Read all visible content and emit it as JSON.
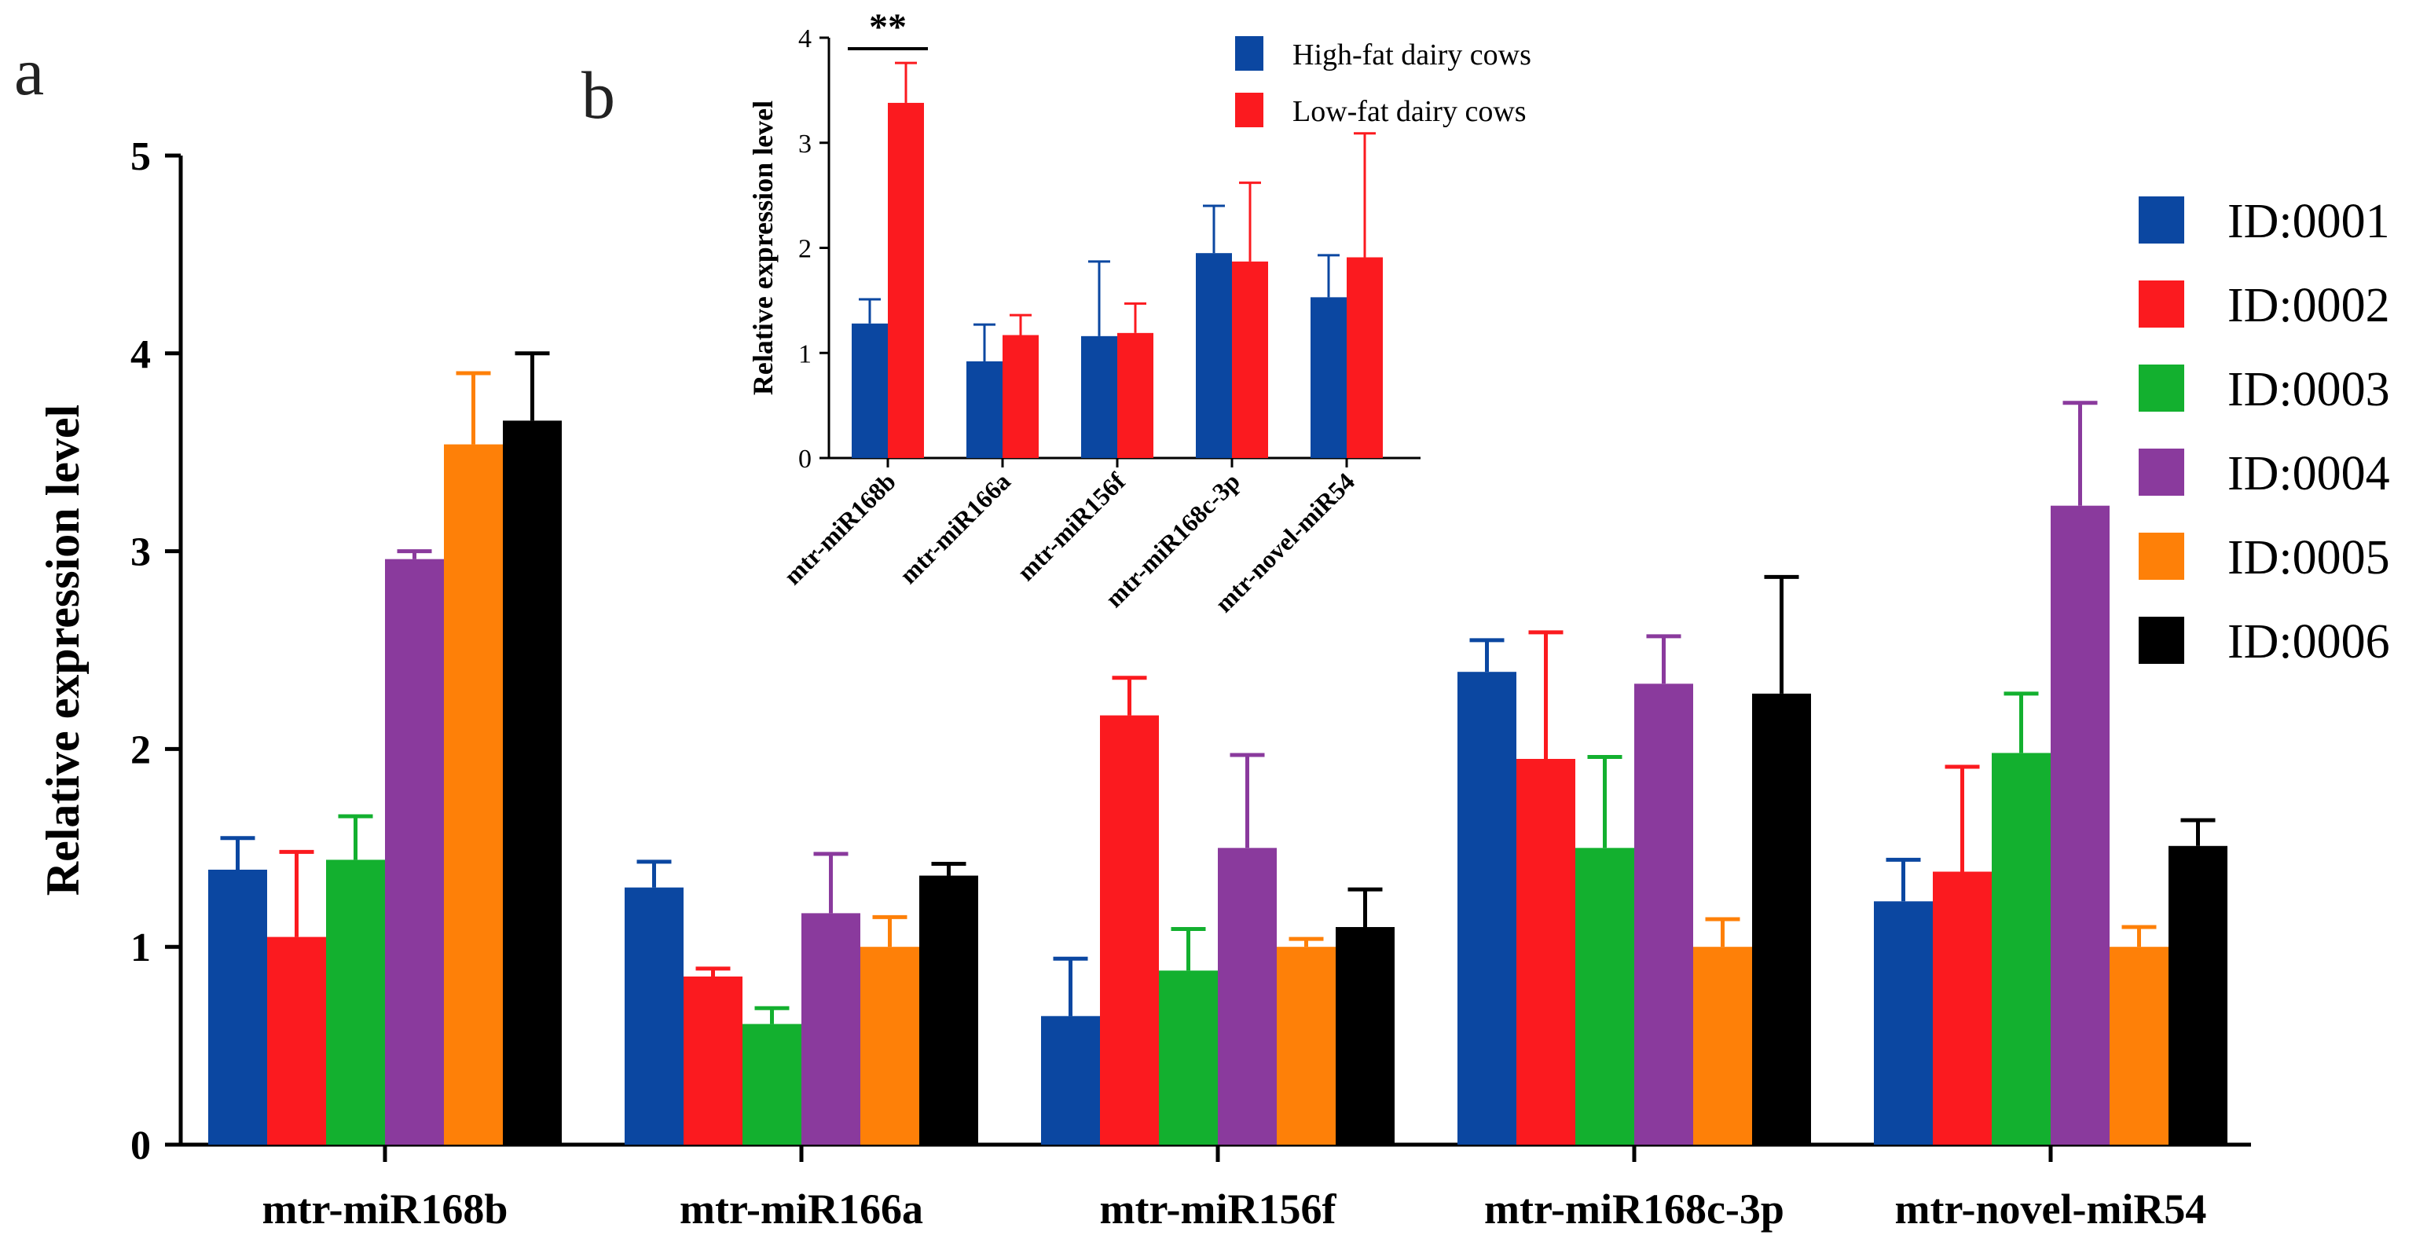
{
  "panels": {
    "a": "a",
    "b": "b"
  },
  "chart_data": [
    {
      "id": "a",
      "type": "bar",
      "title": "",
      "xlabel": "",
      "ylabel": "Relative expression level",
      "ylim": [
        0,
        5
      ],
      "yticks": [
        0,
        1,
        2,
        3,
        4,
        5
      ],
      "categories": [
        "mtr-miR168b",
        "mtr-miR166a",
        "mtr-miR156f",
        "mtr-miR168c-3p",
        "mtr-novel-miR54"
      ],
      "legend_position": "right",
      "series": [
        {
          "name": "ID:0001",
          "color": "#0b47a1",
          "values": [
            1.39,
            1.3,
            0.65,
            2.39,
            1.23
          ],
          "errors": [
            0.16,
            0.13,
            0.29,
            0.16,
            0.21
          ]
        },
        {
          "name": "ID:0002",
          "color": "#fb1a1f",
          "values": [
            1.05,
            0.85,
            2.17,
            1.95,
            1.38
          ],
          "errors": [
            0.43,
            0.04,
            0.19,
            0.64,
            0.53
          ]
        },
        {
          "name": "ID:0003",
          "color": "#13b02f",
          "values": [
            1.44,
            0.61,
            0.88,
            1.5,
            1.98
          ],
          "errors": [
            0.22,
            0.08,
            0.21,
            0.46,
            0.3
          ]
        },
        {
          "name": "ID:0004",
          "color": "#8a3a9d",
          "values": [
            2.96,
            1.17,
            1.5,
            2.33,
            3.23
          ],
          "errors": [
            0.04,
            0.3,
            0.47,
            0.24,
            0.52
          ]
        },
        {
          "name": "ID:0005",
          "color": "#fe8008",
          "values": [
            3.54,
            1.0,
            1.0,
            1.0,
            1.0
          ],
          "errors": [
            0.36,
            0.15,
            0.04,
            0.14,
            0.1
          ]
        },
        {
          "name": "ID:0006",
          "color": "#000000",
          "values": [
            3.66,
            1.36,
            1.1,
            2.28,
            1.51
          ],
          "errors": [
            0.34,
            0.06,
            0.19,
            0.59,
            0.13
          ]
        }
      ]
    },
    {
      "id": "b",
      "type": "bar",
      "title": "",
      "xlabel": "",
      "ylabel": "Relative expression level",
      "ylim": [
        0,
        4
      ],
      "yticks": [
        0,
        1,
        2,
        3,
        4
      ],
      "categories": [
        "mtr-miR168b",
        "mtr-miR166a",
        "mtr-miR156f",
        "mtr-miR168c-3p",
        "mtr-novel-miR54"
      ],
      "legend_position": "top-right",
      "significance": {
        "label": "**",
        "category": "mtr-miR168b"
      },
      "series": [
        {
          "name": "High-fat dairy cows",
          "color": "#0b47a1",
          "values": [
            1.28,
            0.92,
            1.16,
            1.95,
            1.53
          ],
          "errors": [
            0.23,
            0.35,
            0.71,
            0.45,
            0.4
          ]
        },
        {
          "name": "Low-fat dairy cows",
          "color": "#fb1a1f",
          "values": [
            3.38,
            1.17,
            1.19,
            1.87,
            1.91
          ],
          "errors": [
            0.38,
            0.19,
            0.28,
            0.75,
            1.18
          ]
        }
      ]
    }
  ]
}
